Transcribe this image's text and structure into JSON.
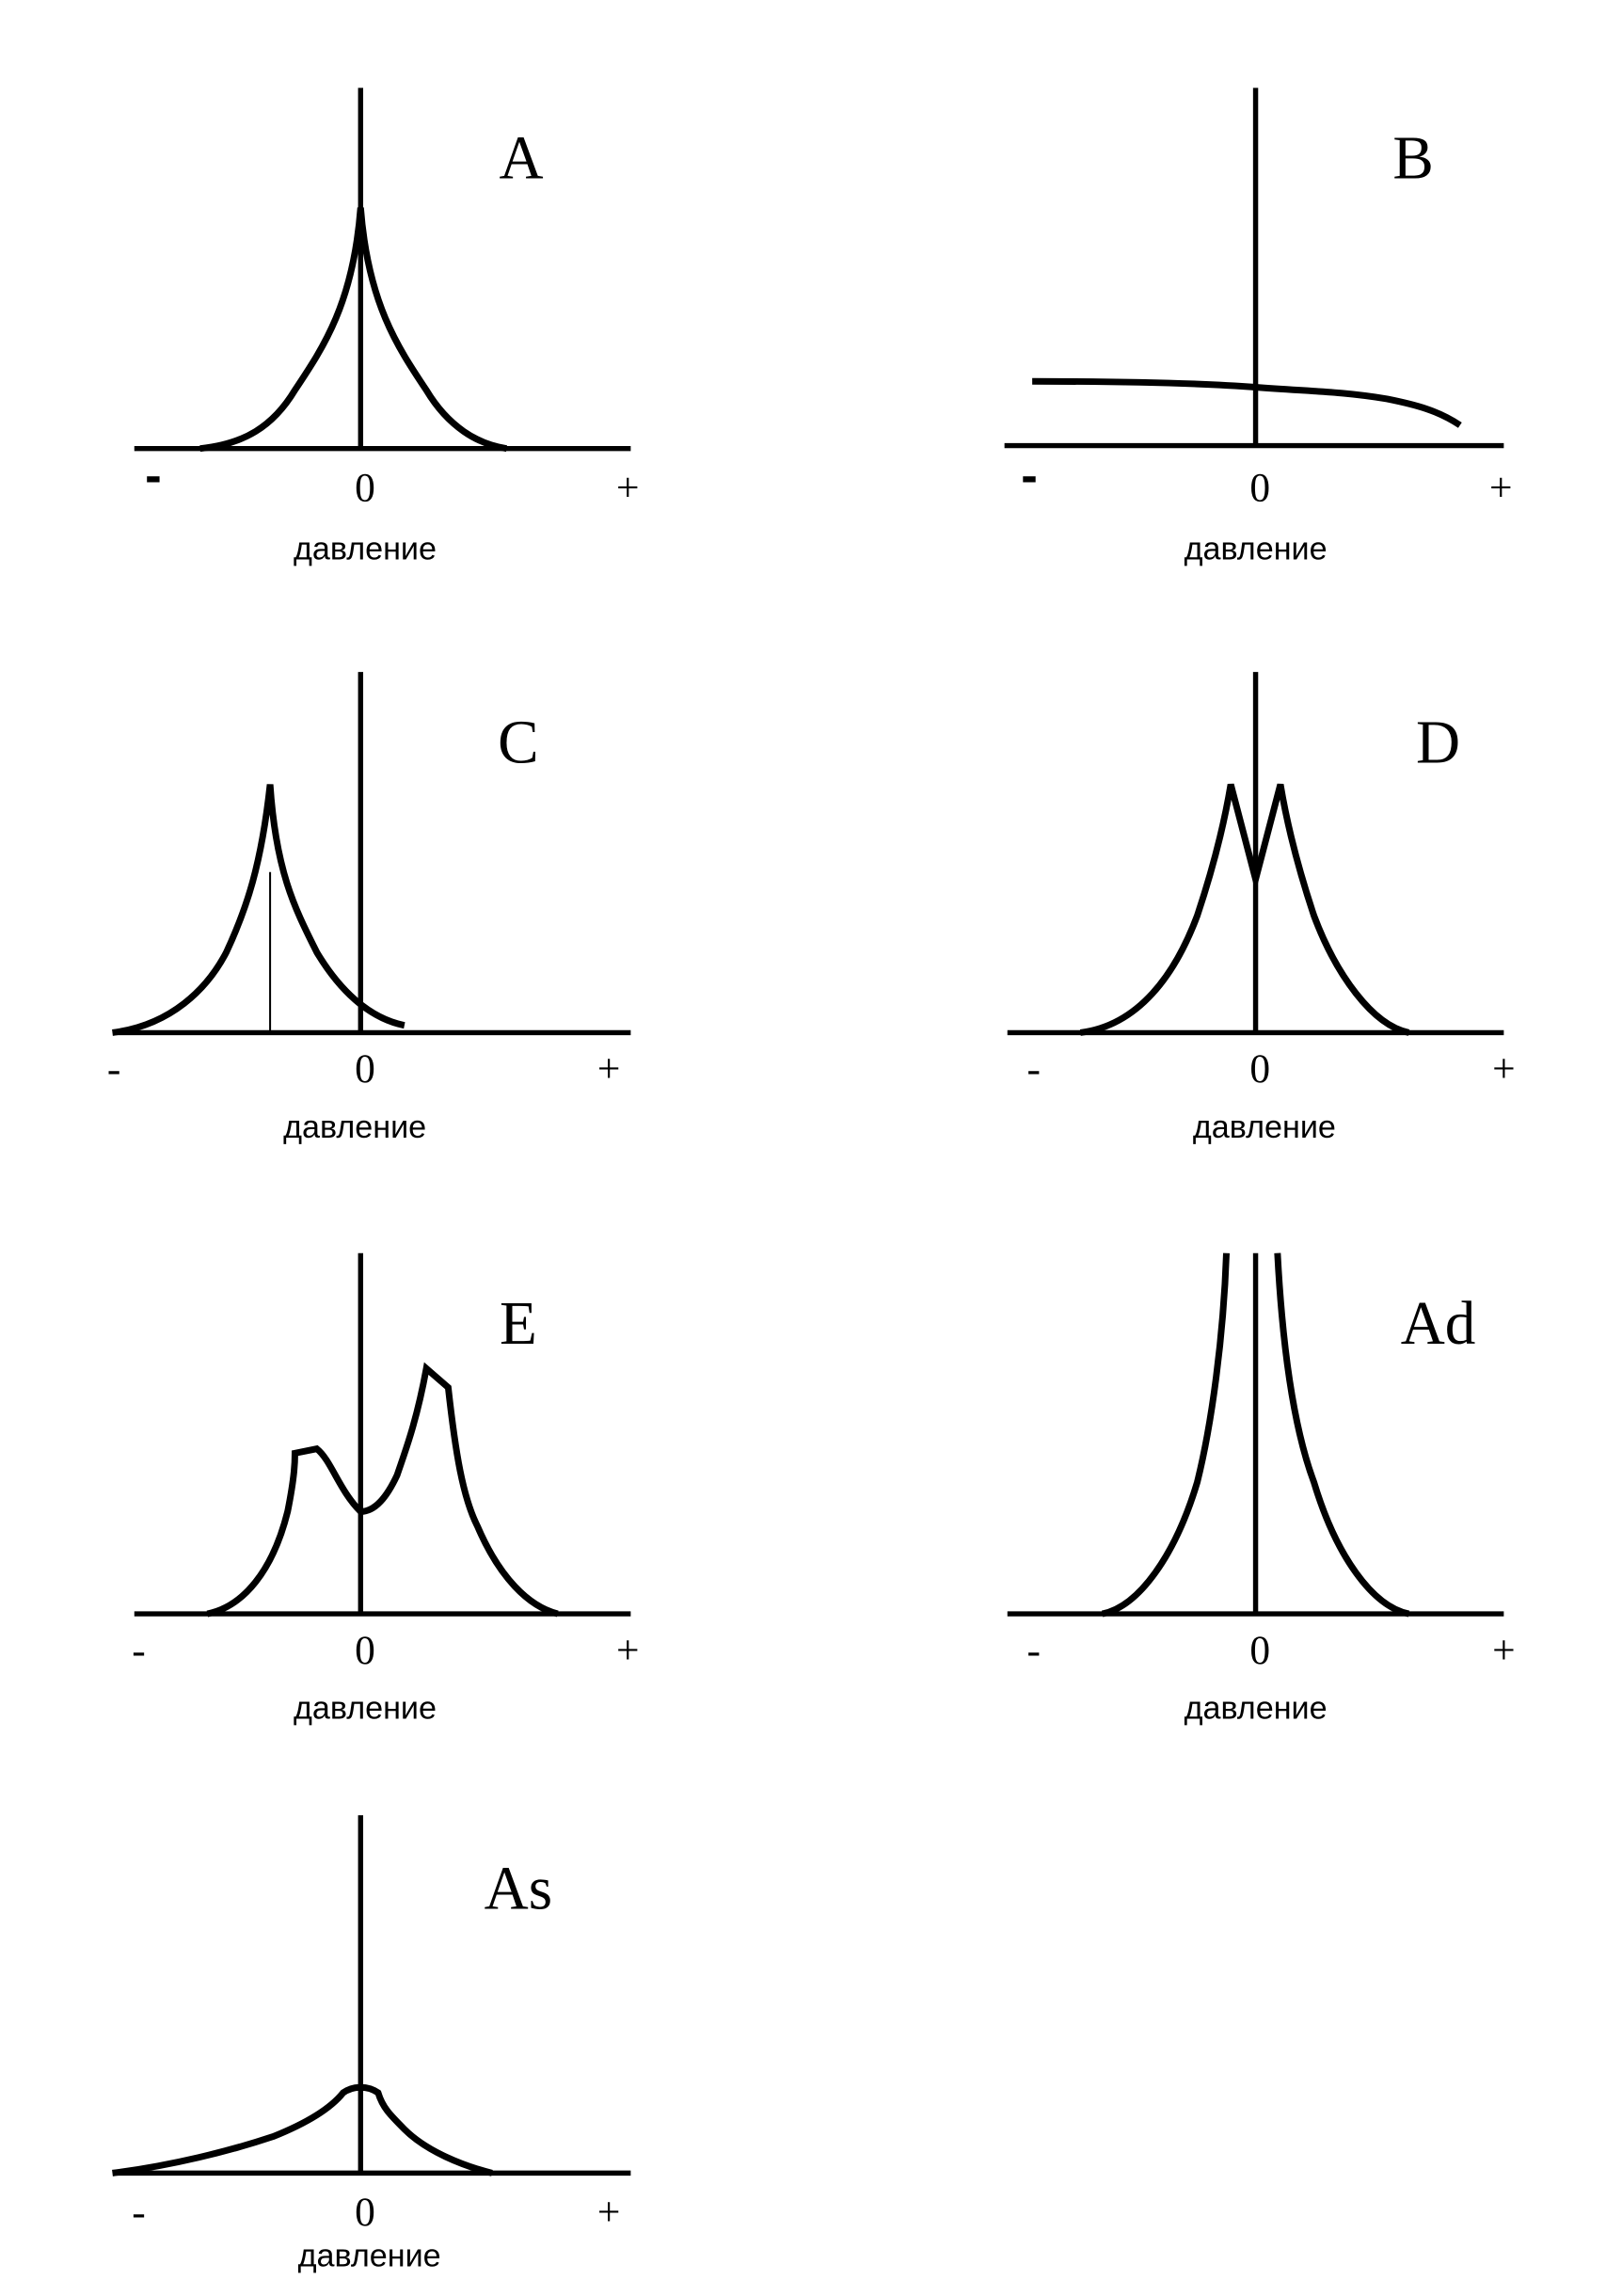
{
  "panels": [
    {
      "label": "A",
      "minus": "-",
      "zero": "0",
      "plus": "+",
      "xlabel": "давление"
    },
    {
      "label": "B",
      "minus": "-",
      "zero": "0",
      "plus": "+",
      "xlabel": "давление"
    },
    {
      "label": "C",
      "minus": "-",
      "zero": "0",
      "plus": "+",
      "xlabel": "давление"
    },
    {
      "label": "D",
      "minus": "-",
      "zero": "0",
      "plus": "+",
      "xlabel": "давление"
    },
    {
      "label": "E",
      "minus": "-",
      "zero": "0",
      "plus": "+",
      "xlabel": "давление"
    },
    {
      "label": "Ad",
      "minus": "-",
      "zero": "0",
      "plus": "+",
      "xlabel": "давление"
    },
    {
      "label": "As",
      "minus": "-",
      "zero": "0",
      "plus": "+",
      "xlabel": "давление"
    }
  ]
}
